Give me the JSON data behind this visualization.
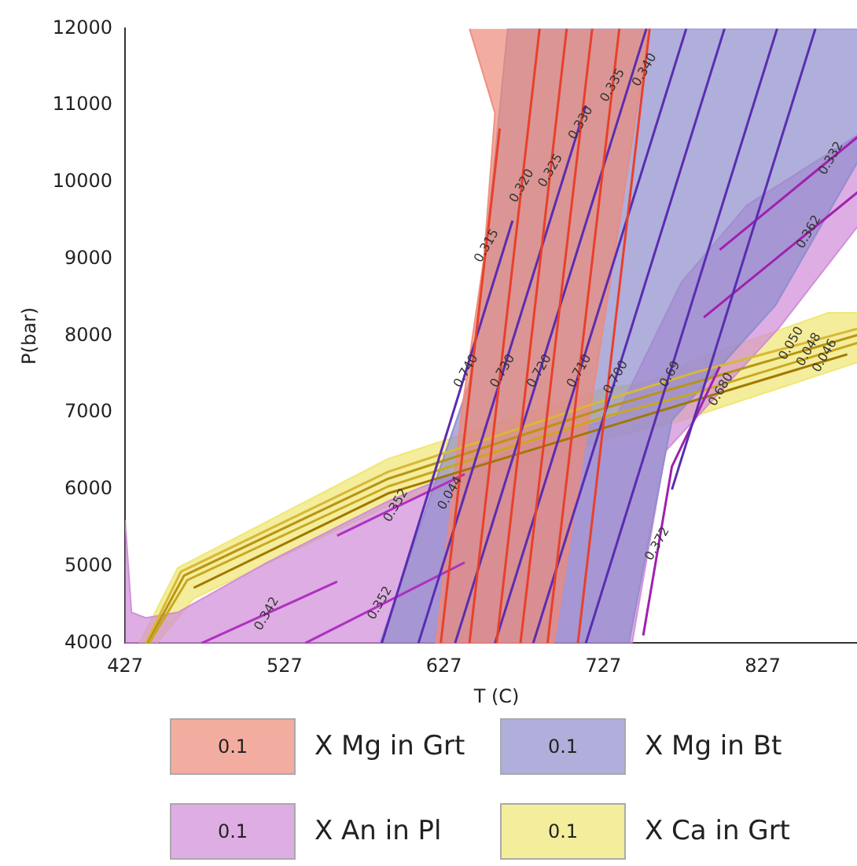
{
  "chart_data": {
    "type": "area",
    "xlabel": "T (C)",
    "ylabel": "P(bar)",
    "xlim": [
      427,
      893
    ],
    "ylim": [
      4000,
      12000
    ],
    "xticks": [
      427,
      527,
      627,
      727,
      827
    ],
    "yticks": [
      4000,
      5000,
      6000,
      7000,
      8000,
      9000,
      10000,
      11000,
      12000
    ],
    "legend": "bottom",
    "grid": false,
    "series": [
      {
        "name": "X Mg in Grt",
        "type": "area",
        "color": "#ee8a78",
        "x": [
          643,
          659,
          652,
          638,
          622,
          696,
          756
        ],
        "values": [
          12000,
          10900,
          9000,
          7000,
          4000,
          4000,
          12000
        ]
      },
      {
        "name": "X Mg in Bt",
        "type": "area",
        "color": "#8e8ccc",
        "x": [
          587,
          643,
          650,
          667,
          893,
          893,
          835,
          770,
          743
        ],
        "values": [
          4000,
          7400,
          8500,
          12000,
          12000,
          10500,
          8400,
          6900,
          4000
        ]
      },
      {
        "name": "X An in Pl",
        "type": "area",
        "color": "#cf8ad8",
        "x": [
          427,
          431,
          440,
          460,
          516,
          592,
          674,
          735,
          776,
          817,
          893,
          893,
          837,
          766,
          745,
          427
        ],
        "values": [
          5600,
          4400,
          4330,
          4400,
          5050,
          5850,
          6550,
          6950,
          8700,
          9700,
          10700,
          9600,
          8100,
          6500,
          4000,
          4000
        ]
      },
      {
        "name": "X Ca in Grt",
        "type": "area",
        "color": "#f0e670",
        "x": [
          447,
          470,
          592,
          735,
          776,
          893,
          893,
          868,
          786,
          756,
          725,
          592,
          460,
          436
        ],
        "values": [
          4000,
          4580,
          5790,
          6690,
          6900,
          7700,
          8300,
          8300,
          7700,
          7400,
          7300,
          6400,
          4980,
          4000
        ]
      },
      {
        "type": "line",
        "color": "#e8402a",
        "x": [
          625,
          662
        ],
        "values": [
          4000,
          10700
        ]
      },
      {
        "type": "line",
        "color": "#e8402a",
        "x": [
          643,
          687
        ],
        "values": [
          4000,
          12000
        ]
      },
      {
        "type": "line",
        "color": "#e8402a",
        "x": [
          660,
          704
        ],
        "values": [
          4000,
          12000
        ]
      },
      {
        "type": "line",
        "color": "#e8402a",
        "x": [
          675,
          720
        ],
        "values": [
          4000,
          12000
        ]
      },
      {
        "type": "line",
        "color": "#e8402a",
        "x": [
          692,
          737
        ],
        "values": [
          4000,
          12000
        ]
      },
      {
        "type": "line",
        "color": "#e8402a",
        "x": [
          711,
          756
        ],
        "values": [
          4000,
          12000
        ]
      },
      {
        "type": "line",
        "color": "#5a2db0",
        "x": [
          588,
          670
        ],
        "values": [
          4000,
          9500
        ]
      },
      {
        "type": "line",
        "color": "#5a2db0",
        "x": [
          611,
          716
        ],
        "values": [
          4000,
          11000
        ]
      },
      {
        "type": "line",
        "color": "#5a2db0",
        "x": [
          634,
          754
        ],
        "values": [
          4000,
          12000
        ]
      },
      {
        "type": "line",
        "color": "#5a2db0",
        "x": [
          659,
          779
        ],
        "values": [
          4000,
          12000
        ]
      },
      {
        "type": "line",
        "color": "#5a2db0",
        "x": [
          683,
          803
        ],
        "values": [
          4000,
          12000
        ]
      },
      {
        "type": "line",
        "color": "#5a2db0",
        "x": [
          716,
          836
        ],
        "values": [
          4000,
          12000
        ]
      },
      {
        "type": "line",
        "color": "#5a2db0",
        "x": [
          770,
          860
        ],
        "values": [
          6000,
          12000
        ]
      },
      {
        "type": "line",
        "color": "#b030c0",
        "x": [
          475,
          560
        ],
        "values": [
          4000,
          4800
        ]
      },
      {
        "type": "line",
        "color": "#b030c0",
        "x": [
          540,
          640
        ],
        "values": [
          4000,
          5050
        ]
      },
      {
        "type": "line",
        "color": "#b030c0",
        "x": [
          560,
          640
        ],
        "values": [
          5400,
          6200
        ]
      },
      {
        "type": "line",
        "color": "#a020b0",
        "x": [
          800,
          893
        ],
        "values": [
          9120,
          10700
        ]
      },
      {
        "type": "line",
        "color": "#a020b0",
        "x": [
          790,
          893
        ],
        "values": [
          8240,
          9980
        ]
      },
      {
        "type": "line",
        "color": "#a020b0",
        "x": [
          752,
          770,
          800
        ],
        "values": [
          4100,
          6300,
          7600
        ]
      },
      {
        "type": "line",
        "color": "#a07800",
        "x": [
          470,
          592,
          735,
          880
        ],
        "values": [
          4720,
          5950,
          6850,
          7760
        ]
      },
      {
        "type": "line",
        "color": "#c8a820",
        "x": [
          442,
          466,
          592,
          730,
          780,
          893
        ],
        "values": [
          4000,
          4820,
          6040,
          6960,
          7230,
          7950
        ]
      },
      {
        "type": "line",
        "color": "#b89414",
        "x": [
          441,
          464,
          592,
          728,
          782,
          893
        ],
        "values": [
          4000,
          4880,
          6140,
          7060,
          7380,
          8050
        ]
      },
      {
        "type": "line",
        "color": "#d8b838",
        "x": [
          440,
          462,
          592,
          726,
          784,
          893
        ],
        "values": [
          4000,
          4930,
          6230,
          7150,
          7520,
          8130
        ]
      }
    ],
    "annotations": [
      "0.1",
      {
        "text": "0.315",
        "x": 654,
        "y": 9170
      },
      {
        "text": "0.320",
        "x": 676,
        "y": 9950
      },
      {
        "text": "0.325",
        "x": 694,
        "y": 10150
      },
      {
        "text": "0.330",
        "x": 713,
        "y": 10770
      },
      {
        "text": "0.335",
        "x": 733,
        "y": 11260
      },
      {
        "text": "0.340",
        "x": 753,
        "y": 11460
      },
      {
        "text": "0.740",
        "x": 641,
        "y": 7540
      },
      {
        "text": "0.730",
        "x": 664,
        "y": 7540
      },
      {
        "text": "0.720",
        "x": 687,
        "y": 7540
      },
      {
        "text": "0.710",
        "x": 712,
        "y": 7540
      },
      {
        "text": "0.700",
        "x": 735,
        "y": 7460
      },
      {
        "text": "0.69",
        "x": 769,
        "y": 7500
      },
      {
        "text": "0.680",
        "x": 801,
        "y": 7300
      },
      {
        "text": "0.342",
        "x": 516,
        "y": 4380
      },
      {
        "text": "0.352",
        "x": 587,
        "y": 4520
      },
      {
        "text": "0.352",
        "x": 597,
        "y": 5790
      },
      {
        "text": "0.044",
        "x": 631,
        "y": 5950
      },
      {
        "text": "0.332",
        "x": 870,
        "y": 10310
      },
      {
        "text": "0.362",
        "x": 856,
        "y": 9350
      },
      {
        "text": "0.372",
        "x": 761,
        "y": 5290
      },
      {
        "text": "0.050",
        "x": 845,
        "y": 7900
      },
      {
        "text": "0.048",
        "x": 856,
        "y": 7820
      },
      {
        "text": "0.046",
        "x": 866,
        "y": 7740
      }
    ]
  }
}
